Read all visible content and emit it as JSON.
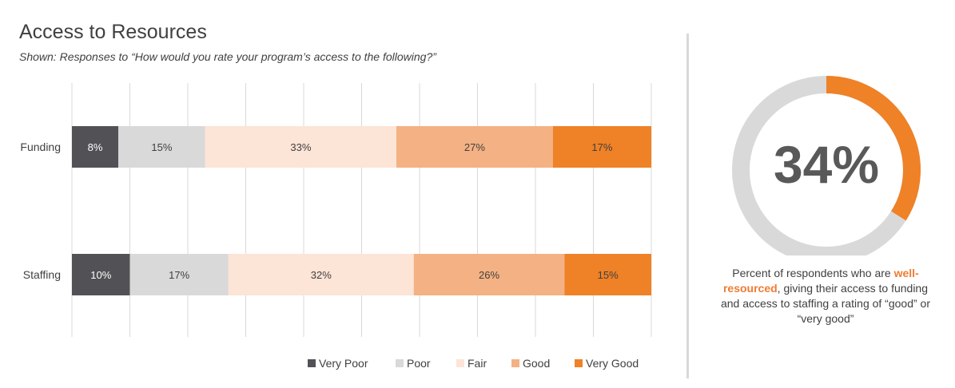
{
  "title": "Access to Resources",
  "subtitle": "Shown: Responses to “How would you rate your program’s access to the following?”",
  "chart_data": {
    "type": "bar",
    "orientation": "horizontal",
    "stacked": true,
    "categories": [
      "Funding",
      "Staffing"
    ],
    "series": [
      {
        "name": "Very Poor",
        "values": [
          8,
          10
        ],
        "color": "#525256"
      },
      {
        "name": "Poor",
        "values": [
          15,
          17
        ],
        "color": "#d9d9d9"
      },
      {
        "name": "Fair",
        "values": [
          33,
          32
        ],
        "color": "#fce4d6"
      },
      {
        "name": "Good",
        "values": [
          27,
          26
        ],
        "color": "#f4b183"
      },
      {
        "name": "Very Good",
        "values": [
          17,
          15
        ],
        "color": "#ef8127"
      }
    ],
    "data_label_suffix": "%",
    "xlim": [
      0,
      100
    ],
    "grid": true,
    "legend_position": "bottom"
  },
  "donut": {
    "value": 34,
    "value_label": "34%",
    "fill_color": "#ef8127",
    "track_color": "#d9d9d9"
  },
  "caption": {
    "before": "Percent of respondents who are ",
    "highlight": "well-resourced",
    "after": ", giving their access to funding and access to staffing a rating of “good” or “very good”"
  }
}
